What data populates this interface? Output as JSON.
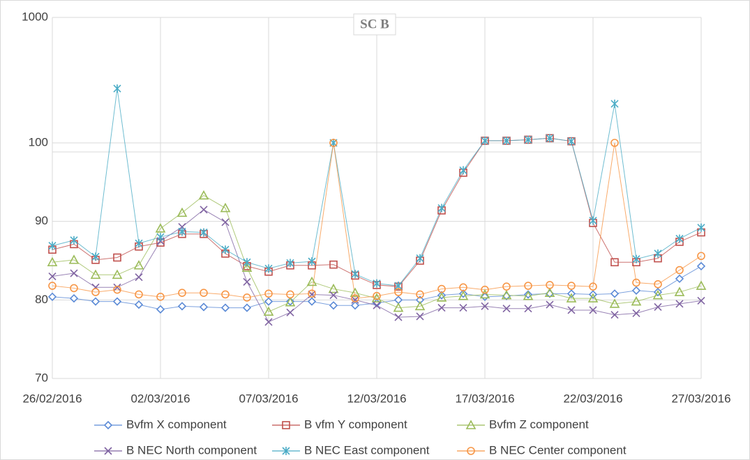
{
  "chart_data": {
    "type": "line",
    "title": "SC B",
    "x": [
      "26/02/2016",
      "27/02/2016",
      "28/02/2016",
      "29/02/2016",
      "01/03/2016",
      "02/03/2016",
      "03/03/2016",
      "04/03/2016",
      "05/03/2016",
      "06/03/2016",
      "07/03/2016",
      "08/03/2016",
      "09/03/2016",
      "10/03/2016",
      "11/03/2016",
      "12/03/2016",
      "13/03/2016",
      "14/03/2016",
      "15/03/2016",
      "16/03/2016",
      "17/03/2016",
      "18/03/2016",
      "19/03/2016",
      "20/03/2016",
      "21/03/2016",
      "22/03/2016",
      "23/03/2016",
      "24/03/2016",
      "25/03/2016",
      "26/03/2016",
      "27/03/2016"
    ],
    "xticks": [
      "26/02/2016",
      "02/03/2016",
      "07/03/2016",
      "12/03/2016",
      "17/03/2016",
      "22/03/2016",
      "27/03/2016"
    ],
    "ylim": [
      70,
      1000
    ],
    "yticks": [
      70,
      80,
      90,
      100,
      1000
    ],
    "y_break": {
      "at": 100,
      "upper_scale": "log"
    },
    "grid": true,
    "legend": "bottom",
    "series": [
      {
        "name": "Bvfm X component",
        "color": "#5b8ad6",
        "marker": "diamond",
        "values": [
          80.4,
          80.2,
          79.8,
          79.8,
          79.4,
          78.8,
          79.2,
          79.1,
          79.0,
          79.0,
          79.8,
          79.8,
          79.8,
          79.3,
          79.3,
          79.6,
          80.0,
          80.0,
          80.6,
          80.8,
          80.4,
          80.5,
          80.7,
          80.8,
          80.8,
          80.7,
          80.8,
          81.2,
          81.0,
          82.7,
          84.3
        ]
      },
      {
        "name": "B vfm Y component",
        "color": "#c0504d",
        "marker": "square",
        "values": [
          86.4,
          87.1,
          85.1,
          85.4,
          86.8,
          87.3,
          88.4,
          88.4,
          85.9,
          84.3,
          83.6,
          84.4,
          84.4,
          84.5,
          83.1,
          81.9,
          81.7,
          85.0,
          91.4,
          96.2,
          104,
          104,
          106,
          109,
          103,
          89.8,
          84.8,
          84.8,
          85.3,
          87.4,
          88.6
        ]
      },
      {
        "name": "Bvfm Z component",
        "color": "#9bbb59",
        "marker": "triangle",
        "values": [
          84.8,
          85.1,
          83.2,
          83.2,
          84.4,
          89.1,
          91.1,
          93.3,
          91.7,
          84.1,
          78.5,
          79.7,
          82.3,
          81.4,
          80.9,
          80.2,
          79.0,
          79.2,
          80.3,
          80.5,
          80.7,
          80.6,
          80.5,
          80.9,
          80.2,
          80.2,
          79.5,
          79.8,
          80.6,
          81.0,
          81.8
        ]
      },
      {
        "name": "B NEC North component",
        "color": "#8064a2",
        "marker": "x",
        "values": [
          83.0,
          83.4,
          81.6,
          81.6,
          82.9,
          87.5,
          89.3,
          91.5,
          89.9,
          82.3,
          77.2,
          78.4,
          80.7,
          80.6,
          80.0,
          79.3,
          77.8,
          77.9,
          79.0,
          79.0,
          79.2,
          78.9,
          78.9,
          79.4,
          78.7,
          78.7,
          78.1,
          78.3,
          79.1,
          79.5,
          79.9
        ]
      },
      {
        "name": "B NEC East component",
        "color": "#4bacc6",
        "marker": "star",
        "values": [
          86.9,
          87.6,
          85.5,
          271,
          87.2,
          88.0,
          88.7,
          88.6,
          86.4,
          84.8,
          84.0,
          84.7,
          84.9,
          100,
          83.3,
          82.1,
          81.8,
          85.3,
          91.7,
          96.5,
          104,
          104,
          106,
          109,
          103,
          90.1,
          205,
          85.2,
          85.9,
          87.8,
          89.2
        ]
      },
      {
        "name": "B NEC Center component",
        "color": "#f79646",
        "marker": "circle",
        "values": [
          81.8,
          81.5,
          81.0,
          81.3,
          80.7,
          80.4,
          80.9,
          80.9,
          80.7,
          80.3,
          80.8,
          80.7,
          80.8,
          100,
          80.2,
          80.5,
          81.0,
          80.7,
          81.4,
          81.6,
          81.3,
          81.7,
          81.8,
          81.9,
          81.8,
          81.7,
          100,
          82.2,
          82.0,
          83.8,
          85.6
        ]
      }
    ]
  }
}
